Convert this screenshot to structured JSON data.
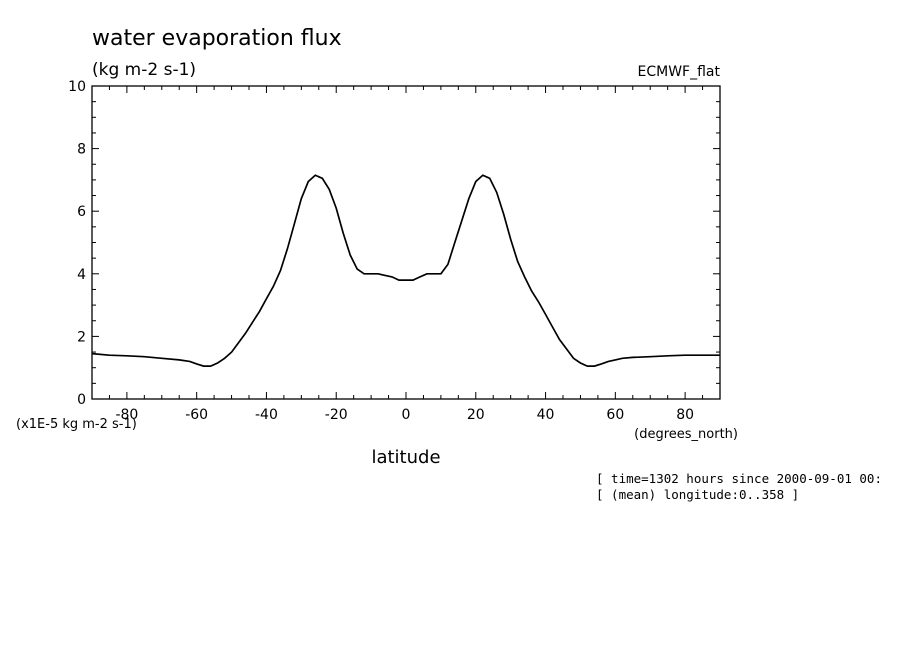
{
  "chart_data": {
    "type": "line",
    "title": "water evaporation flux",
    "subtitle": "(kg m-2 s-1)",
    "dataset_label": "ECMWF_flat",
    "xlabel": "latitude",
    "x_unit_label": "(degrees_north)",
    "y_scale_label": "(x1E-5 kg m-2 s-1)",
    "xlim": [
      -90,
      90
    ],
    "ylim": [
      0,
      10
    ],
    "x_ticks": [
      -80,
      -60,
      -40,
      -20,
      0,
      20,
      40,
      60,
      80
    ],
    "x_tick_labels": [
      "-80",
      "-60",
      "-40",
      "-20",
      "0",
      "20",
      "40",
      "60",
      "80"
    ],
    "y_ticks": [
      0,
      2,
      4,
      6,
      8,
      10
    ],
    "y_tick_labels": [
      "0",
      "2",
      "4",
      "6",
      "8",
      "10"
    ],
    "grid": false,
    "line_color": "#000000",
    "x": [
      -90,
      -85,
      -80,
      -75,
      -70,
      -65,
      -62,
      -60,
      -58,
      -56,
      -54,
      -52,
      -50,
      -48,
      -46,
      -44,
      -42,
      -40,
      -38,
      -36,
      -34,
      -32,
      -30,
      -28,
      -26,
      -24,
      -22,
      -20,
      -18,
      -16,
      -14,
      -12,
      -10,
      -8,
      -6,
      -4,
      -2,
      0,
      2,
      4,
      6,
      8,
      10,
      12,
      14,
      16,
      18,
      20,
      22,
      24,
      26,
      28,
      30,
      32,
      34,
      36,
      38,
      40,
      42,
      44,
      46,
      48,
      50,
      52,
      54,
      56,
      58,
      60,
      62,
      65,
      70,
      75,
      80,
      85,
      90
    ],
    "y": [
      1.45,
      1.4,
      1.38,
      1.35,
      1.3,
      1.25,
      1.2,
      1.12,
      1.05,
      1.05,
      1.15,
      1.3,
      1.5,
      1.8,
      2.1,
      2.45,
      2.8,
      3.2,
      3.6,
      4.1,
      4.8,
      5.6,
      6.4,
      6.95,
      7.15,
      7.05,
      6.7,
      6.1,
      5.3,
      4.6,
      4.15,
      4.0,
      4.0,
      4.0,
      3.95,
      3.9,
      3.8,
      3.8,
      3.8,
      3.9,
      4.0,
      4.0,
      4.0,
      4.3,
      5.0,
      5.7,
      6.4,
      6.95,
      7.15,
      7.05,
      6.6,
      5.9,
      5.1,
      4.4,
      3.9,
      3.45,
      3.1,
      2.7,
      2.3,
      1.9,
      1.6,
      1.3,
      1.15,
      1.05,
      1.05,
      1.12,
      1.2,
      1.25,
      1.3,
      1.33,
      1.35,
      1.38,
      1.4,
      1.4,
      1.4
    ]
  },
  "annotations": {
    "time_note": "[ time=1302 hours since 2000-09-01 00:",
    "longitude_note": "[ (mean) longitude:0..358 ]"
  }
}
